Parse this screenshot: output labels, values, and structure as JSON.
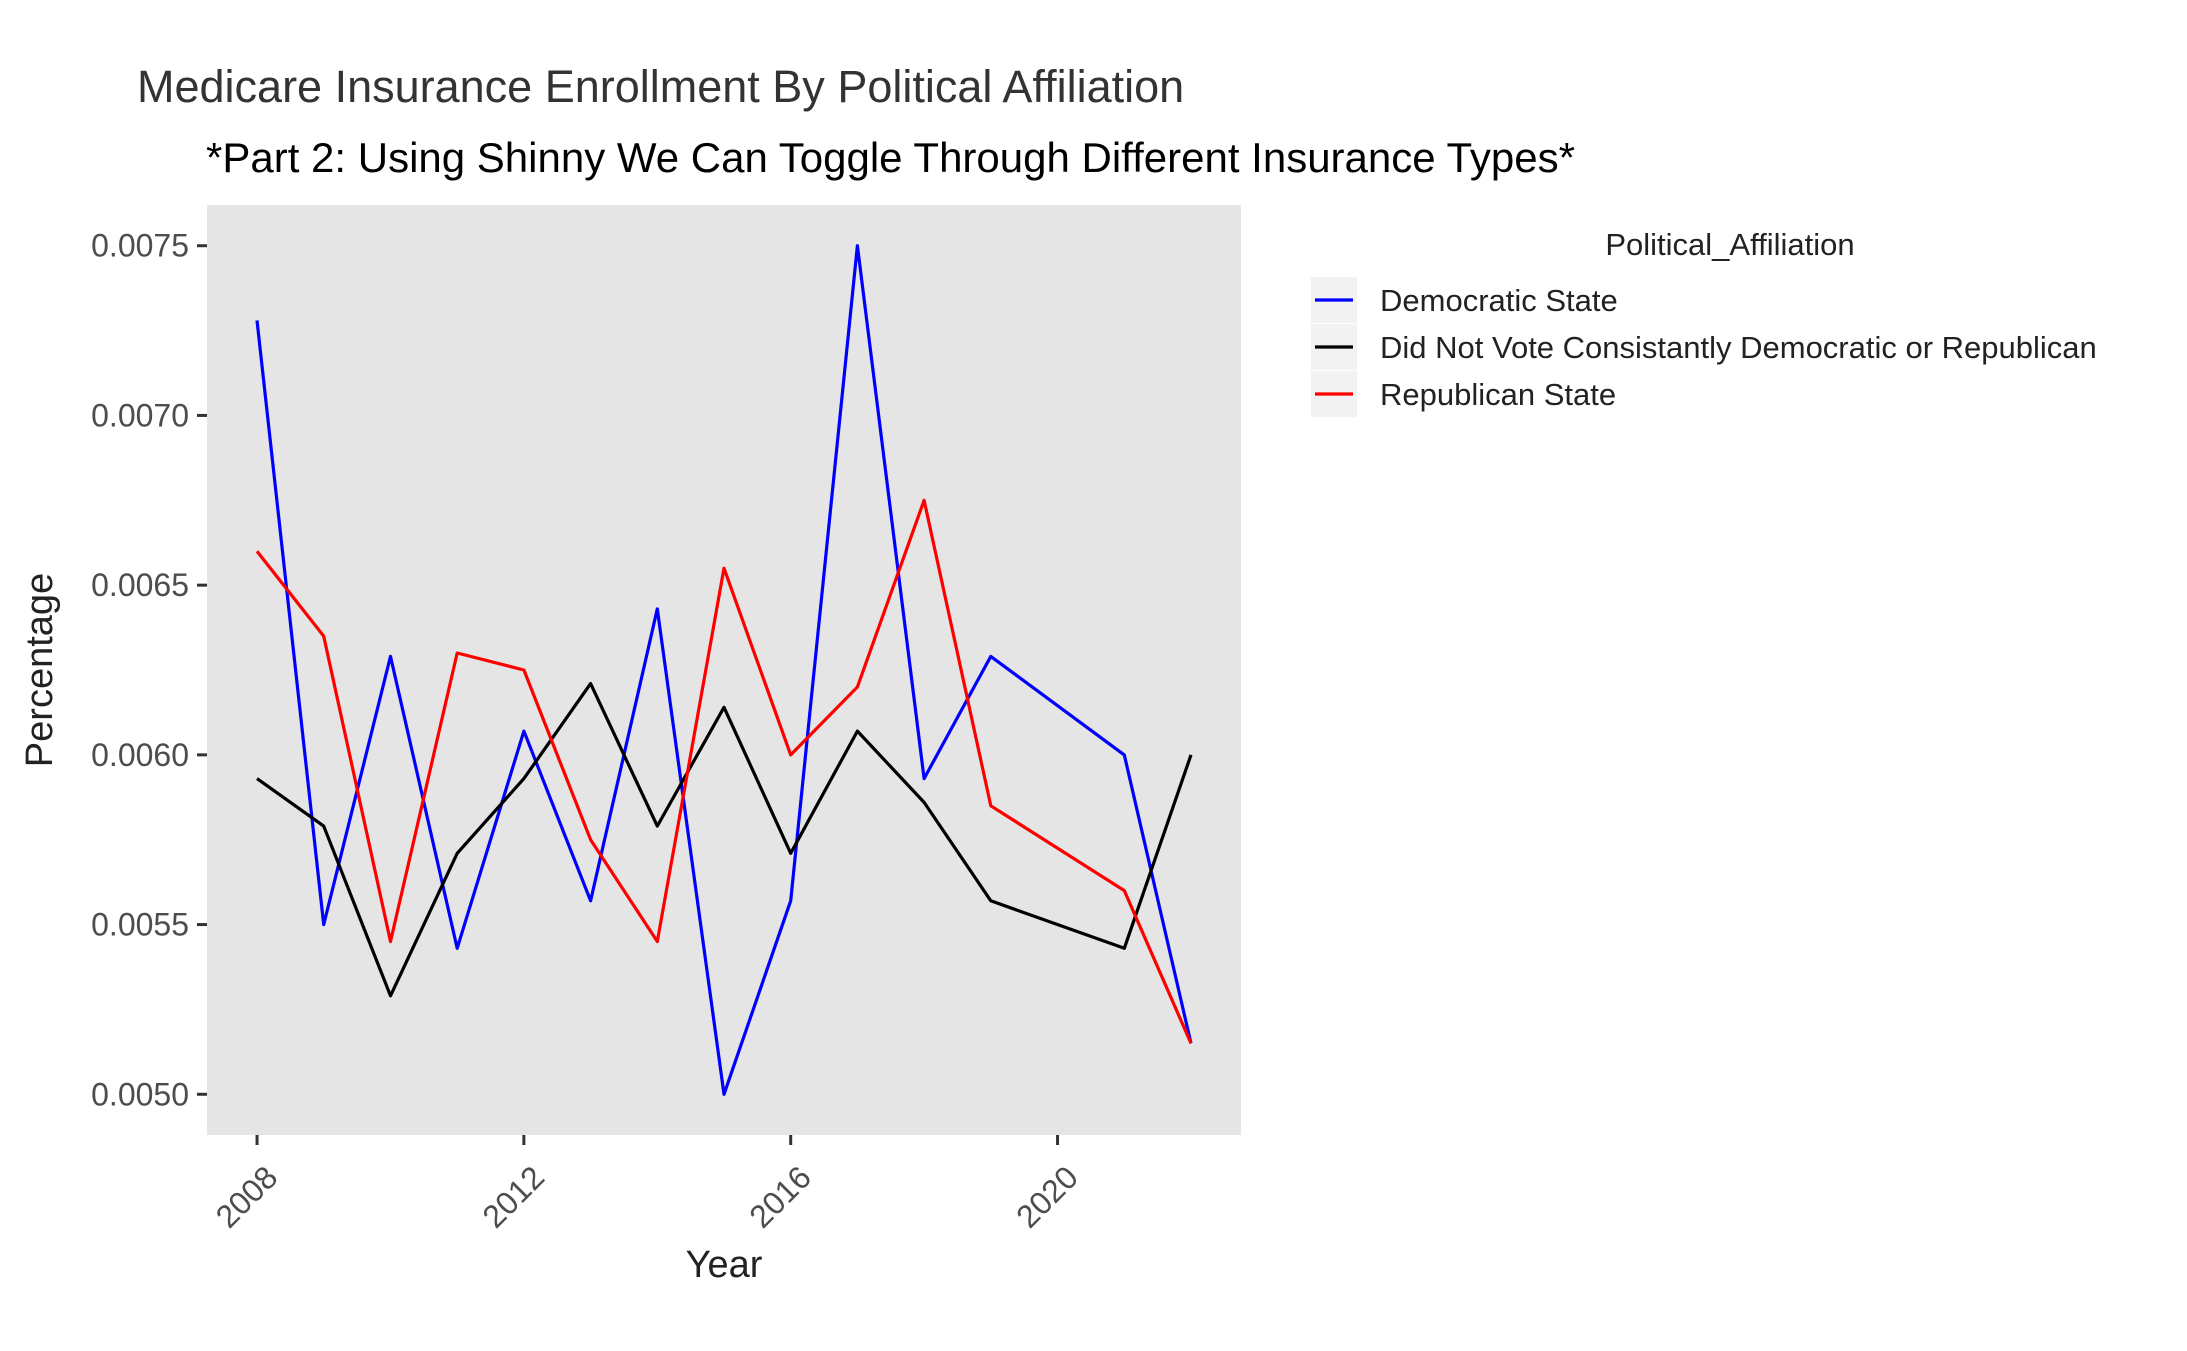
{
  "chart_data": {
    "type": "line",
    "title": "Medicare Insurance Enrollment By Political Affiliation",
    "subtitle": "*Part 2: Using Shinny We Can Toggle Through Different Insurance Types*",
    "xlabel": "Year",
    "ylabel": "Percentage",
    "xlim": [
      2007.25,
      2022.75
    ],
    "ylim": [
      0.00488,
      0.00762
    ],
    "x_ticks": [
      2008,
      2012,
      2016,
      2020
    ],
    "x_tick_labels": [
      "2008",
      "2012",
      "2016",
      "2020"
    ],
    "y_ticks": [
      0.005,
      0.0055,
      0.006,
      0.0065,
      0.007,
      0.0075
    ],
    "y_tick_labels": [
      "0.0050",
      "0.0055",
      "0.0060",
      "0.0065",
      "0.0070",
      "0.0075"
    ],
    "grid": false,
    "panel_background": "#e5e5e5",
    "legend": {
      "title": "Political_Affiliation",
      "position": "right"
    },
    "x": [
      2008,
      2009,
      2010,
      2011,
      2012,
      2013,
      2014,
      2015,
      2016,
      2017,
      2018,
      2019,
      2021,
      2022
    ],
    "series": [
      {
        "name": "Democratic State",
        "color": "#0000ff",
        "values": [
          0.00728,
          0.0055,
          0.00629,
          0.00543,
          0.00607,
          0.00557,
          0.00643,
          0.005,
          0.00557,
          0.0075,
          0.00593,
          0.00629,
          0.006,
          0.00515
        ]
      },
      {
        "name": "Did Not Vote Consistantly Democratic or Republican",
        "color": "#000000",
        "values": [
          0.00593,
          0.00579,
          0.00529,
          0.00571,
          0.00593,
          0.00621,
          0.00579,
          0.00614,
          0.00571,
          0.00607,
          0.00586,
          0.00557,
          0.00543,
          0.006
        ]
      },
      {
        "name": "Republican State",
        "color": "#ff0000",
        "values": [
          0.0066,
          0.00635,
          0.00545,
          0.0063,
          0.00625,
          0.00575,
          0.00545,
          0.00655,
          0.006,
          0.0062,
          0.00675,
          0.00585,
          0.0056,
          0.00515
        ]
      }
    ]
  }
}
